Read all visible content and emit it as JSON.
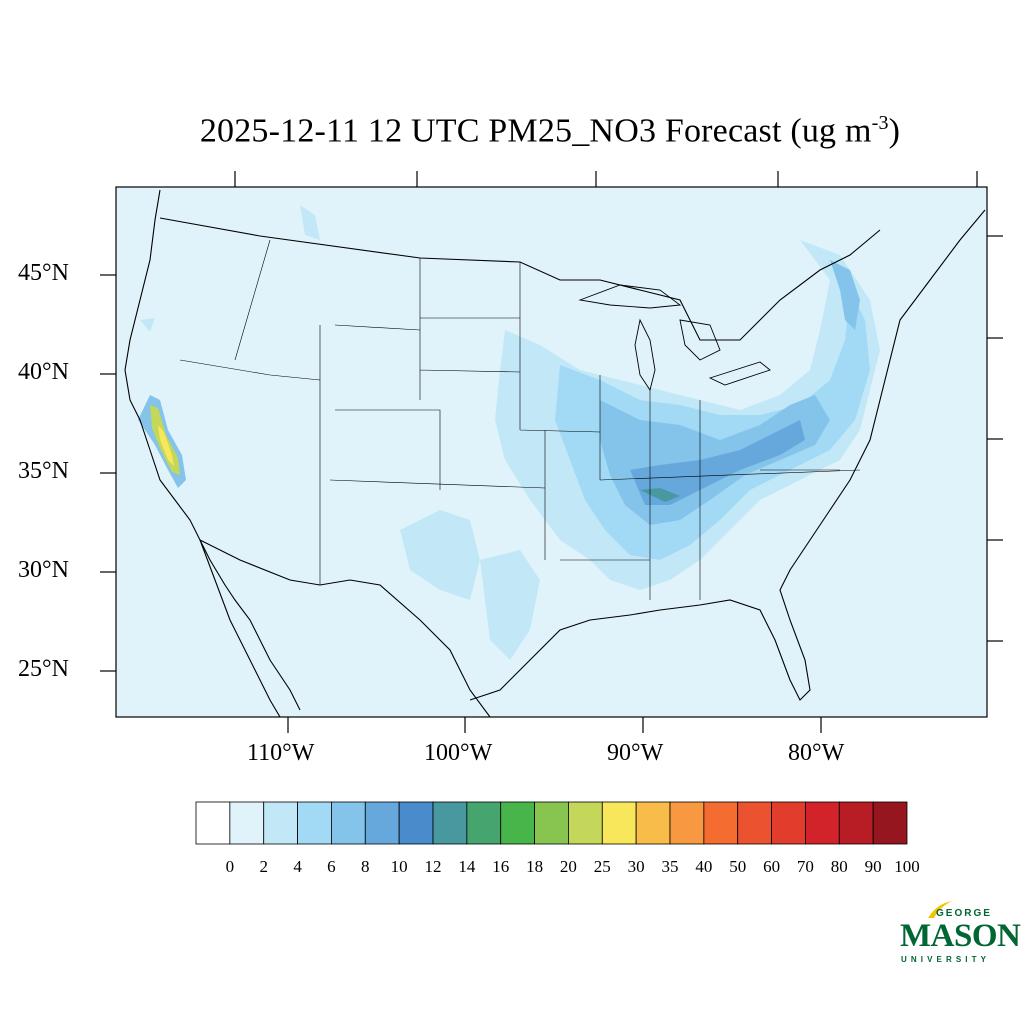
{
  "title": {
    "main": "2025-12-11 12 UTC PM25_NO3 Forecast (ug m",
    "sup": "-3",
    "close": ")"
  },
  "lat_labels": [
    "45°N",
    "40°N",
    "35°N",
    "30°N",
    "25°N"
  ],
  "lon_labels": [
    "110°W",
    "100°W",
    "90°W",
    "80°W"
  ],
  "colorbar": {
    "labels": [
      "0",
      "2",
      "4",
      "6",
      "8",
      "10",
      "12",
      "14",
      "16",
      "18",
      "20",
      "25",
      "30",
      "35",
      "40",
      "50",
      "60",
      "70",
      "80",
      "90",
      "100"
    ],
    "colors": [
      "#ffffff",
      "#e0f3fb",
      "#c2e8f8",
      "#a2d9f5",
      "#84c3ea",
      "#66a8dc",
      "#4a8bcc",
      "#4898a0",
      "#46a56e",
      "#48b54a",
      "#88c550",
      "#c4d75a",
      "#f8e75a",
      "#f8bc48",
      "#f89840",
      "#f46c30",
      "#ea5230",
      "#e23c2c",
      "#d2222a",
      "#b81c24",
      "#961620"
    ]
  },
  "colors": {
    "background": "#e0f3fb",
    "accent": "#006633"
  },
  "logo": {
    "george": "GEORGE",
    "mason": "MASON",
    "university": "UNIVERSITY"
  }
}
